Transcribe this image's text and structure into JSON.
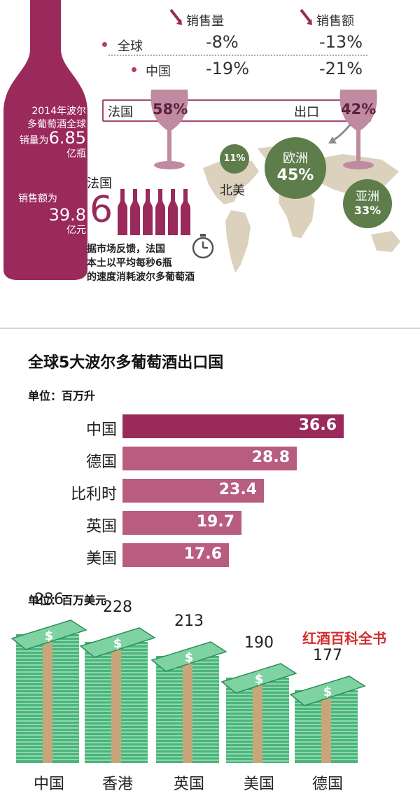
{
  "top": {
    "headers": {
      "sales_volume": "销售量",
      "sales_value": "销售额"
    },
    "rows": [
      {
        "label": "全球",
        "volume": "-8%",
        "value": "-13%"
      },
      {
        "label": "中国",
        "volume": "-19%",
        "value": "-21%"
      }
    ],
    "bottle_text": {
      "volume_desc": [
        "2014年波尔",
        "多葡萄酒全球",
        "销量为"
      ],
      "volume_num": "6.85",
      "volume_unit": "亿瓶",
      "value_desc": "销售额为",
      "value_num": "39.8",
      "value_unit": "亿元"
    },
    "compare": {
      "france_label": "法国",
      "france_pct": "58%",
      "export_label": "出口",
      "export_pct": "42%"
    },
    "regions": [
      {
        "name": "北美",
        "pct": "11%"
      },
      {
        "name": "欧洲",
        "pct": "45%"
      },
      {
        "name": "亚洲",
        "pct": "33%"
      }
    ],
    "france_note": {
      "title": "法国",
      "number": "6",
      "lines": [
        "据市场反馈，法国",
        "本土以平均每秒6瓶",
        "的速度消耗波尔多葡萄酒"
      ]
    }
  },
  "colors": {
    "wine": "#9a2a5c",
    "pink": "#b85d80",
    "glass": "#c08aa0",
    "map": "#dcd1bd",
    "green": "#5e7d4a",
    "money": "#49b57b"
  },
  "icons": [
    "arrow-down-icon",
    "arrow-down-icon",
    "stopwatch-icon",
    "bottle-icon",
    "dollar-stack-icon"
  ],
  "chart_data": [
    {
      "type": "bar",
      "title": "全球5大波尔多葡萄酒出口国",
      "unit": "单位：百万升",
      "categories": [
        "中国",
        "德国",
        "比利时",
        "英国",
        "美国"
      ],
      "values": [
        36.6,
        28.8,
        23.4,
        19.7,
        17.6
      ],
      "value_labels": [
        "36.6",
        "28.8",
        "23.4",
        "19.7",
        "17.6"
      ],
      "orientation": "horizontal"
    },
    {
      "type": "bar",
      "unit": "单位：百万美元",
      "categories": [
        "中国",
        "香港",
        "英国",
        "美国",
        "德国"
      ],
      "values": [
        236,
        228,
        213,
        190,
        177
      ],
      "value_labels": [
        "236",
        "228",
        "213",
        "190",
        "177"
      ]
    }
  ],
  "brand": "红酒百科全书"
}
